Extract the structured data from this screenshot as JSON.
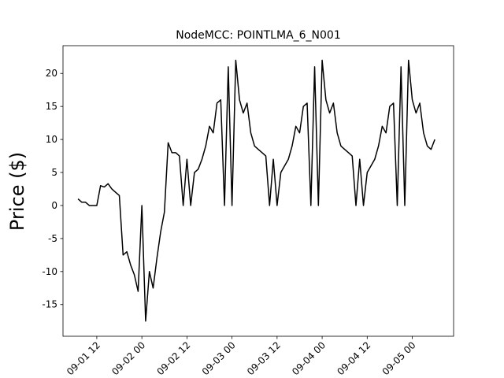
{
  "chart_data": {
    "type": "line",
    "title": "NodeMCC: POINTLMA_6_N001",
    "y_label": "Price ($)",
    "color": "#000000",
    "x": [
      "09-01 07",
      "09-01 08",
      "09-01 09",
      "09-01 10",
      "09-01 11",
      "09-01 12",
      "09-01 13",
      "09-01 14",
      "09-01 15",
      "09-01 16",
      "09-01 17",
      "09-01 18",
      "09-01 19",
      "09-01 20",
      "09-01 21",
      "09-01 22",
      "09-01 23",
      "09-02 00",
      "09-02 01",
      "09-02 02",
      "09-02 03",
      "09-02 04",
      "09-02 05",
      "09-02 06",
      "09-02 07",
      "09-02 08",
      "09-02 09",
      "09-02 10",
      "09-02 11",
      "09-02 12",
      "09-02 13",
      "09-02 14",
      "09-02 15",
      "09-02 16",
      "09-02 17",
      "09-02 18",
      "09-02 19",
      "09-02 20",
      "09-02 21",
      "09-02 22",
      "09-02 23",
      "09-03 00",
      "09-03 01",
      "09-03 02",
      "09-03 03",
      "09-03 04",
      "09-03 05",
      "09-03 06",
      "09-03 07",
      "09-03 08",
      "09-03 09",
      "09-03 10",
      "09-03 11",
      "09-03 12",
      "09-03 13",
      "09-03 14",
      "09-03 15",
      "09-03 16",
      "09-03 17",
      "09-03 18",
      "09-03 19",
      "09-03 20",
      "09-03 21",
      "09-03 22",
      "09-03 23",
      "09-04 00",
      "09-04 01",
      "09-04 02",
      "09-04 03",
      "09-04 04",
      "09-04 05",
      "09-04 06",
      "09-04 07",
      "09-04 08",
      "09-04 09",
      "09-04 10",
      "09-04 11",
      "09-04 12",
      "09-04 13",
      "09-04 14",
      "09-04 15",
      "09-04 16",
      "09-04 17",
      "09-04 18",
      "09-04 19",
      "09-04 20",
      "09-04 21",
      "09-04 22",
      "09-04 23",
      "09-05 00",
      "09-05 01",
      "09-05 02",
      "09-05 03",
      "09-05 04",
      "09-05 05",
      "09-05 06"
    ],
    "values": [
      1,
      0.5,
      0.5,
      0,
      0,
      0,
      3,
      2.8,
      3.3,
      2.5,
      2,
      1.5,
      -7.5,
      -7,
      -9,
      -10.5,
      -13,
      0,
      -17.5,
      -10,
      -12.5,
      -8,
      -4,
      -1,
      9.5,
      8,
      8,
      7.5,
      0,
      7,
      0,
      5,
      5.5,
      7,
      9,
      12,
      11,
      15.5,
      16,
      0,
      21,
      0,
      22,
      16,
      14,
      15.5,
      11,
      9,
      8.5,
      8,
      7.5,
      0,
      7,
      0,
      5,
      6,
      7,
      9,
      12,
      11,
      15,
      15.5,
      0,
      21,
      0,
      22,
      16,
      14,
      15.5,
      11,
      9,
      8.5,
      8,
      7.5,
      0,
      7,
      0,
      5,
      6,
      7,
      9,
      12,
      11,
      15,
      15.5,
      0,
      21,
      0,
      22,
      16,
      14,
      15.5,
      11,
      9,
      8.5,
      10
    ],
    "xlim": [
      "09-01 03",
      "09-05 11"
    ],
    "xticks": [
      "09-01 12",
      "09-02 00",
      "09-02 12",
      "09-03 00",
      "09-03 12",
      "09-04 00",
      "09-04 12",
      "09-05 00"
    ],
    "ylim": [
      -19.8,
      24.2
    ],
    "yticks": [
      -15,
      -10,
      -5,
      0,
      5,
      10,
      15,
      20
    ]
  }
}
